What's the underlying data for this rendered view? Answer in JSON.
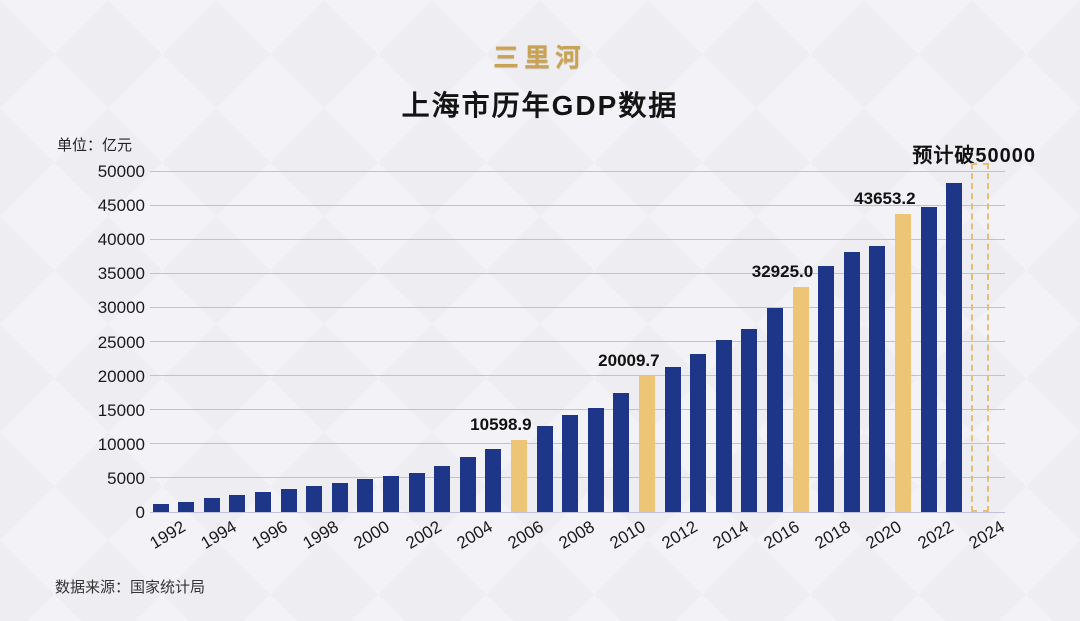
{
  "brand": {
    "logo_text": "三里河",
    "logo_color": "#c9a254"
  },
  "header": {
    "title": "上海市历年GDP数据",
    "unit_label": "单位：亿元"
  },
  "footer": {
    "source": "数据来源：国家统计局"
  },
  "colors": {
    "bar_blue": "#1d3687",
    "bar_gold": "#ecc576",
    "gridline": "#bfc1d8",
    "background": "#f1f0f3",
    "text": "#141414"
  },
  "chart_data": {
    "type": "bar",
    "title": "上海市历年GDP数据",
    "unit": "亿元",
    "xlabel": "",
    "ylabel": "亿元",
    "ylim": [
      0,
      50000
    ],
    "yticks": [
      0,
      5000,
      10000,
      15000,
      20000,
      25000,
      30000,
      35000,
      40000,
      45000,
      50000
    ],
    "grid": true,
    "legend": "none",
    "x_label_years": [
      1992,
      1994,
      1996,
      1998,
      2000,
      2002,
      2004,
      2006,
      2008,
      2010,
      2012,
      2014,
      2016,
      2018,
      2020,
      2022,
      2024
    ],
    "projection_annotation": "预计破50000",
    "bars": [
      {
        "year": 1992,
        "value": 1114.3
      },
      {
        "year": 1993,
        "value": 1519.2
      },
      {
        "year": 1994,
        "value": 1990.9
      },
      {
        "year": 1995,
        "value": 2499.4
      },
      {
        "year": 1996,
        "value": 2957.6
      },
      {
        "year": 1997,
        "value": 3438.8
      },
      {
        "year": 1998,
        "value": 3801.1
      },
      {
        "year": 1999,
        "value": 4188.7
      },
      {
        "year": 2000,
        "value": 4771.2
      },
      {
        "year": 2001,
        "value": 5210.1
      },
      {
        "year": 2002,
        "value": 5741.0
      },
      {
        "year": 2003,
        "value": 6694.2
      },
      {
        "year": 2004,
        "value": 8072.8
      },
      {
        "year": 2005,
        "value": 9247.7
      },
      {
        "year": 2006,
        "value": 10598.9,
        "highlight": true,
        "label": "10598.9"
      },
      {
        "year": 2007,
        "value": 12668.1
      },
      {
        "year": 2008,
        "value": 14275.4
      },
      {
        "year": 2009,
        "value": 15285.6
      },
      {
        "year": 2010,
        "value": 17433.0
      },
      {
        "year": 2011,
        "value": 20009.7,
        "highlight": true,
        "label": "20009.7"
      },
      {
        "year": 2012,
        "value": 21305.6
      },
      {
        "year": 2013,
        "value": 23204.1
      },
      {
        "year": 2014,
        "value": 25269.8
      },
      {
        "year": 2015,
        "value": 26887.0
      },
      {
        "year": 2016,
        "value": 29887.0
      },
      {
        "year": 2017,
        "value": 32925.0,
        "highlight": true,
        "label": "32925.0"
      },
      {
        "year": 2018,
        "value": 36011.8
      },
      {
        "year": 2019,
        "value": 38155.3
      },
      {
        "year": 2020,
        "value": 38963.3
      },
      {
        "year": 2021,
        "value": 43653.2,
        "highlight": true,
        "label": "43653.2"
      },
      {
        "year": 2022,
        "value": 44652.8
      },
      {
        "year": 2023,
        "value": 48261.6
      },
      {
        "year": 2024,
        "value": null,
        "projected": true,
        "annotation": "预计破50000"
      }
    ]
  }
}
